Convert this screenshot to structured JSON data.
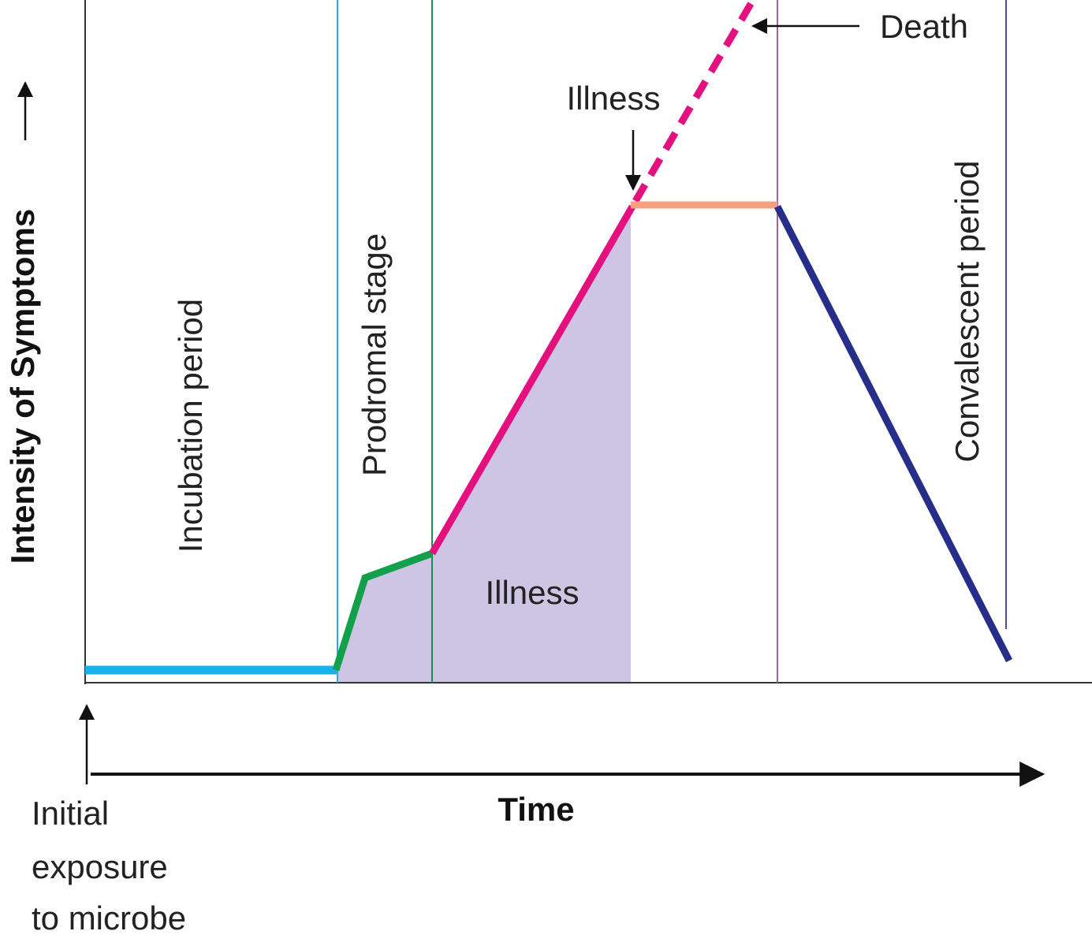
{
  "axes": {
    "y_label": "Intensity of Symptoms",
    "x_label": "Time"
  },
  "stages": [
    {
      "label": "Incubation period"
    },
    {
      "label": "Prodromal stage"
    },
    {
      "label": "Illness"
    },
    {
      "label": "Convalescent period"
    }
  ],
  "annotations": {
    "illness_peak": "Illness",
    "death": "Death",
    "exposure": [
      "Initial",
      "exposure",
      "to microbe"
    ]
  }
}
